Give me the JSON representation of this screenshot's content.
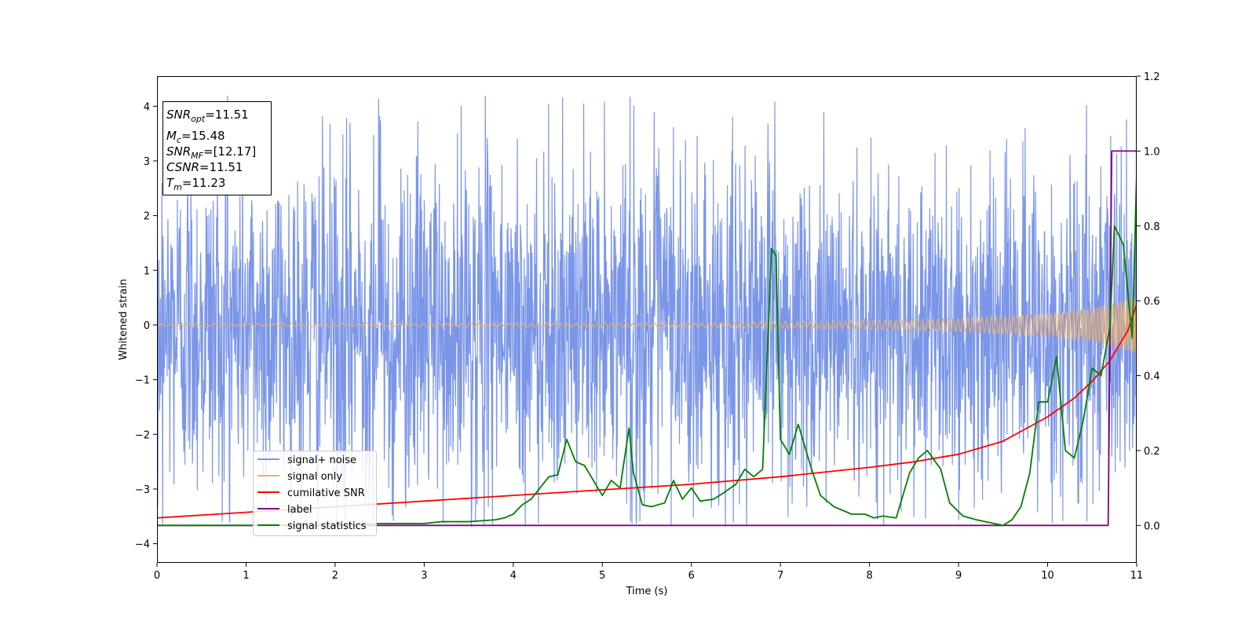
{
  "chart_data": {
    "type": "line",
    "xlabel": "Time (s)",
    "ylabel": "Whitened strain",
    "xlim": [
      0,
      11
    ],
    "ylim_left": [
      -4.35,
      4.55
    ],
    "ylim_right": [
      -0.1,
      1.2
    ],
    "x_ticks": [
      "0",
      "1",
      "2",
      "3",
      "4",
      "5",
      "6",
      "7",
      "8",
      "9",
      "10",
      "11"
    ],
    "y_ticks_left": [
      "−4",
      "−3",
      "−2",
      "−1",
      "0",
      "1",
      "2",
      "3",
      "4"
    ],
    "y_ticks_right": [
      "0.0",
      "0.2",
      "0.4",
      "0.6",
      "0.8",
      "1.0",
      "1.2"
    ],
    "stats_box": {
      "lines": [
        {
          "name": "SNR",
          "sub": "opt",
          "value": "=11.51"
        },
        {
          "name": "M",
          "sub": "c",
          "value": "=15.48"
        },
        {
          "name": "SNR",
          "sub": "MF",
          "value": "=[12.17]"
        },
        {
          "name": "CSNR",
          "sub": "",
          "value": "=11.51"
        },
        {
          "name": "T",
          "sub": "m",
          "value": "=11.23"
        }
      ]
    },
    "legend": {
      "placement": "lower-left",
      "entries": [
        "signal+ noise",
        "signal only",
        "cumilative SNR",
        "label",
        "signal statistics"
      ]
    },
    "series": [
      {
        "name": "signal+ noise",
        "axis": "left",
        "color": "#7b96e8",
        "description": "whitened noisy strain, amplitude roughly within [-3.7, 4.2]",
        "envelope": {
          "typical": 2.2,
          "max": 4.2,
          "min": -3.7
        }
      },
      {
        "name": "signal only",
        "axis": "left",
        "color": "#e8b070",
        "description": "chirp signal, amplitude growing toward merger",
        "amplitude": {
          "x": [
            0,
            6,
            8,
            9,
            10,
            10.5,
            11
          ],
          "a": [
            0.02,
            0.04,
            0.08,
            0.12,
            0.2,
            0.3,
            0.5
          ]
        }
      },
      {
        "name": "cumilative SNR",
        "axis": "right",
        "color": "#ff0000",
        "x": [
          0,
          1,
          2,
          3,
          4,
          5,
          6,
          7,
          8,
          8.5,
          9,
          9.5,
          10,
          10.3,
          10.5,
          10.7,
          10.9,
          11
        ],
        "y": [
          0.02,
          0.035,
          0.05,
          0.065,
          0.08,
          0.095,
          0.11,
          0.13,
          0.155,
          0.17,
          0.19,
          0.225,
          0.29,
          0.34,
          0.385,
          0.44,
          0.52,
          0.59
        ]
      },
      {
        "name": "label",
        "axis": "right",
        "color": "#800080",
        "x": [
          0,
          10.68,
          10.72,
          11
        ],
        "y": [
          0,
          0,
          1.0,
          1.0
        ]
      },
      {
        "name": "signal statistics",
        "axis": "right",
        "color": "#008000",
        "x": [
          0,
          0.5,
          1,
          1.5,
          2,
          2.5,
          3,
          3.2,
          3.5,
          3.8,
          3.9,
          4.0,
          4.1,
          4.2,
          4.3,
          4.4,
          4.5,
          4.6,
          4.7,
          4.8,
          4.9,
          5.0,
          5.1,
          5.2,
          5.3,
          5.35,
          5.45,
          5.55,
          5.7,
          5.8,
          5.9,
          6.0,
          6.1,
          6.25,
          6.35,
          6.5,
          6.6,
          6.7,
          6.8,
          6.9,
          6.95,
          7.0,
          7.1,
          7.2,
          7.35,
          7.45,
          7.6,
          7.8,
          7.95,
          8.05,
          8.15,
          8.3,
          8.45,
          8.55,
          8.65,
          8.8,
          8.9,
          9.05,
          9.2,
          9.4,
          9.5,
          9.6,
          9.7,
          9.8,
          9.9,
          10.0,
          10.1,
          10.2,
          10.3,
          10.4,
          10.5,
          10.6,
          10.7,
          10.75,
          10.85,
          10.95,
          11.0
        ],
        "y": [
          0.0,
          0.0,
          0.0,
          0.0,
          0.0,
          0.005,
          0.005,
          0.01,
          0.01,
          0.015,
          0.02,
          0.03,
          0.055,
          0.07,
          0.1,
          0.13,
          0.135,
          0.23,
          0.17,
          0.16,
          0.12,
          0.08,
          0.12,
          0.1,
          0.26,
          0.14,
          0.055,
          0.05,
          0.06,
          0.12,
          0.07,
          0.1,
          0.065,
          0.07,
          0.085,
          0.11,
          0.15,
          0.13,
          0.15,
          0.74,
          0.72,
          0.23,
          0.19,
          0.27,
          0.15,
          0.08,
          0.05,
          0.03,
          0.03,
          0.02,
          0.025,
          0.02,
          0.14,
          0.18,
          0.2,
          0.15,
          0.06,
          0.025,
          0.015,
          0.005,
          0.0,
          0.015,
          0.05,
          0.14,
          0.33,
          0.33,
          0.45,
          0.2,
          0.18,
          0.28,
          0.42,
          0.4,
          0.53,
          0.8,
          0.75,
          0.5,
          0.94
        ]
      }
    ]
  }
}
